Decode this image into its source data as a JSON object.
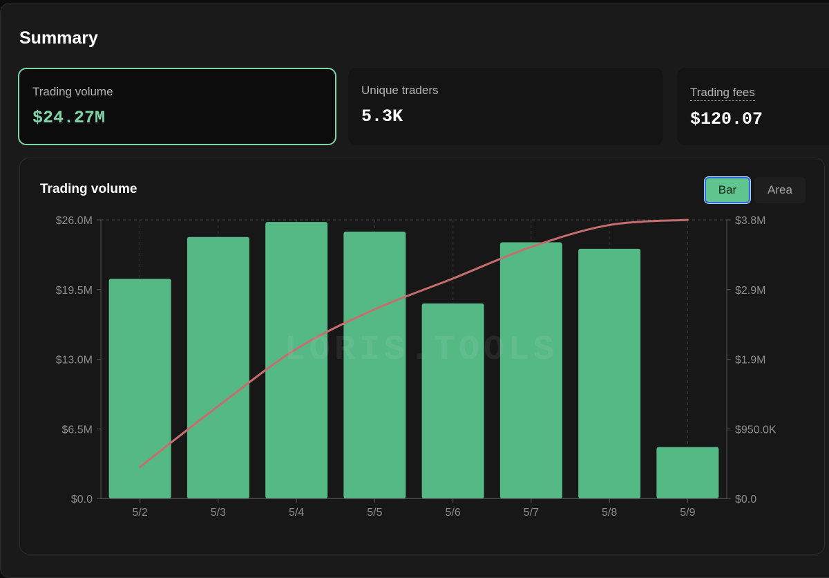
{
  "summary": {
    "title": "Summary",
    "cards": [
      {
        "label": "Trading volume",
        "value": "$24.27M"
      },
      {
        "label": "Unique traders",
        "value": "5.3K"
      },
      {
        "label": "Trading fees",
        "value": "$120.07"
      }
    ]
  },
  "chart_panel": {
    "title": "Trading volume",
    "toggle": {
      "bar": "Bar",
      "area": "Area",
      "selected": "Bar"
    },
    "watermark": "LORIS.TOOLS"
  },
  "colors": {
    "accent": "#7fd4a8",
    "bar": "#55b986",
    "line": "#c66d6d",
    "background": "#1a1a1a"
  },
  "chart_data": {
    "type": "bar",
    "categories": [
      "5/2",
      "5/3",
      "5/4",
      "5/5",
      "5/6",
      "5/7",
      "5/8",
      "5/9"
    ],
    "series": [
      {
        "values": [
          20.5,
          24.4,
          25.8,
          24.9,
          18.2,
          23.9,
          23.3,
          4.8
        ],
        "axis": "left",
        "type": "bar"
      },
      {
        "values": [
          0.43,
          1.26,
          2.04,
          2.58,
          3.0,
          3.43,
          3.73,
          3.8
        ],
        "axis": "right",
        "type": "line"
      }
    ],
    "y_left": {
      "ylim": [
        0,
        26
      ],
      "ticks": [
        "$0.0",
        "$6.5M",
        "$13.0M",
        "$19.5M",
        "$26.0M"
      ]
    },
    "y_right": {
      "ylim": [
        0,
        3.8
      ],
      "ticks": [
        "$0.0",
        "$950.0K",
        "$1.9M",
        "$2.9M",
        "$3.8M"
      ]
    },
    "grid": "dashed vertical and top horizontal",
    "legend": "none"
  }
}
